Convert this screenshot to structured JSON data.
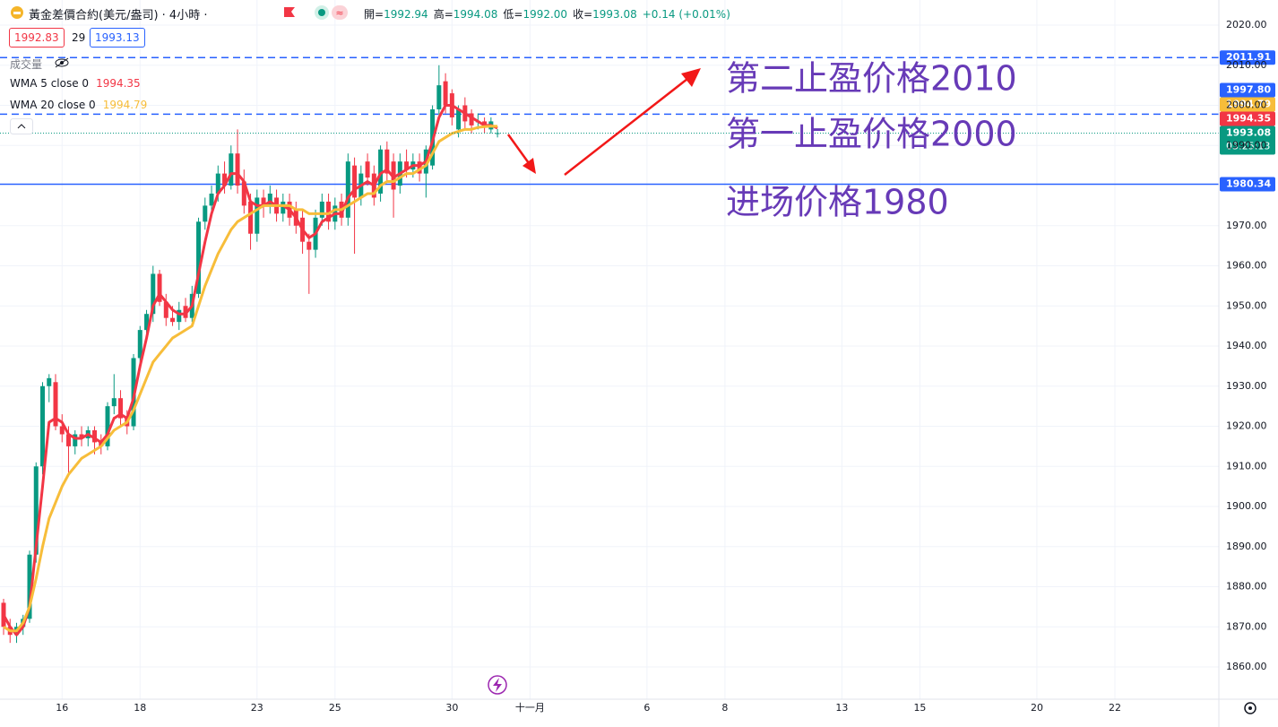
{
  "header": {
    "symbol": "黃金差價合約(美元/盎司) · 4小時 ·",
    "ohlc": [
      {
        "label": "開=",
        "value": "1992.94"
      },
      {
        "label": "高=",
        "value": "1994.08"
      },
      {
        "label": "低=",
        "value": "1992.00"
      },
      {
        "label": "收=",
        "value": "1993.08"
      }
    ],
    "change": "+0.14 (+0.01%)",
    "bid": "1992.83",
    "spread": "29",
    "ask": "1993.13",
    "volume_label": "成交量"
  },
  "chart_data": {
    "type": "candlestick",
    "up_color": "#089981",
    "down_color": "#f23645",
    "xlim": [
      0,
      187
    ],
    "ylim": [
      1851.96,
      2026.26
    ],
    "xticks": [
      {
        "value": 9,
        "label": "16"
      },
      {
        "value": 21,
        "label": "18"
      },
      {
        "value": 39,
        "label": "23"
      },
      {
        "value": 51,
        "label": "25"
      },
      {
        "value": 69,
        "label": "30"
      },
      {
        "value": 81,
        "label": "十一月"
      },
      {
        "value": 99,
        "label": "6"
      },
      {
        "value": 111,
        "label": "8"
      },
      {
        "value": 129,
        "label": "13"
      },
      {
        "value": 141,
        "label": "15"
      },
      {
        "value": 159,
        "label": "20"
      },
      {
        "value": 171,
        "label": "22"
      }
    ],
    "yticks": [
      {
        "value": 2020,
        "label": "2020.00"
      },
      {
        "value": 2010,
        "label": "2010.00"
      },
      {
        "value": 2000,
        "label": "2000.00"
      },
      {
        "value": 1990,
        "label": "1990.00"
      },
      {
        "value": 1970,
        "label": "1970.00"
      },
      {
        "value": 1960,
        "label": "1960.00"
      },
      {
        "value": 1950,
        "label": "1950.00"
      },
      {
        "value": 1940,
        "label": "1940.00"
      },
      {
        "value": 1930,
        "label": "1930.00"
      },
      {
        "value": 1920,
        "label": "1920.00"
      },
      {
        "value": 1910,
        "label": "1910.00"
      },
      {
        "value": 1900,
        "label": "1900.00"
      },
      {
        "value": 1890,
        "label": "1890.00"
      },
      {
        "value": 1880,
        "label": "1880.00"
      },
      {
        "value": 1870,
        "label": "1870.00"
      },
      {
        "value": 1860,
        "label": "1860.00"
      }
    ],
    "grid": true,
    "ohlc": [
      [
        1876,
        1877,
        1868,
        1870
      ],
      [
        1870,
        1872,
        1866,
        1868
      ],
      [
        1868,
        1871,
        1866,
        1870
      ],
      [
        1870,
        1873,
        1868,
        1872
      ],
      [
        1872,
        1889,
        1871,
        1888
      ],
      [
        1888,
        1911,
        1886,
        1910
      ],
      [
        1910,
        1931,
        1908,
        1930
      ],
      [
        1930,
        1933,
        1926,
        1932
      ],
      [
        1931,
        1933,
        1919,
        1920
      ],
      [
        1920,
        1923,
        1916,
        1918
      ],
      [
        1918,
        1920,
        1908,
        1915
      ],
      [
        1915,
        1919,
        1913,
        1918
      ],
      [
        1918,
        1920,
        1915,
        1917
      ],
      [
        1917,
        1920,
        1915,
        1919
      ],
      [
        1919,
        1920,
        1913,
        1916
      ],
      [
        1916,
        1918,
        1913,
        1915
      ],
      [
        1915,
        1926,
        1914,
        1925
      ],
      [
        1925,
        1933,
        1923,
        1927
      ],
      [
        1927,
        1929,
        1920,
        1922
      ],
      [
        1922,
        1924,
        1918,
        1920
      ],
      [
        1920,
        1938,
        1919,
        1937
      ],
      [
        1937,
        1945,
        1935,
        1944
      ],
      [
        1944,
        1949,
        1941,
        1948
      ],
      [
        1948,
        1960,
        1946,
        1958
      ],
      [
        1958,
        1959,
        1950,
        1951
      ],
      [
        1951,
        1953,
        1945,
        1947
      ],
      [
        1947,
        1950,
        1945,
        1946
      ],
      [
        1946,
        1951,
        1944,
        1949
      ],
      [
        1950,
        1952,
        1946,
        1947
      ],
      [
        1947,
        1955,
        1946,
        1953
      ],
      [
        1953,
        1972,
        1952,
        1971
      ],
      [
        1971,
        1977,
        1969,
        1975
      ],
      [
        1975,
        1980,
        1972,
        1978
      ],
      [
        1978,
        1985,
        1976,
        1983
      ],
      [
        1983,
        1986,
        1978,
        1980
      ],
      [
        1980,
        1990,
        1979,
        1988
      ],
      [
        1988,
        1994,
        1978,
        1980
      ],
      [
        1981,
        1984,
        1973,
        1975
      ],
      [
        1976,
        1978,
        1964,
        1968
      ],
      [
        1968,
        1979,
        1966,
        1977
      ],
      [
        1977,
        1979,
        1972,
        1975
      ],
      [
        1975,
        1980,
        1973,
        1978
      ],
      [
        1977,
        1979,
        1971,
        1973
      ],
      [
        1973,
        1978,
        1971,
        1976
      ],
      [
        1976,
        1978,
        1970,
        1972
      ],
      [
        1974,
        1976,
        1968,
        1970
      ],
      [
        1972,
        1974,
        1963,
        1966
      ],
      [
        1966,
        1968,
        1953,
        1964
      ],
      [
        1964,
        1974,
        1962,
        1972
      ],
      [
        1972,
        1978,
        1970,
        1976
      ],
      [
        1976,
        1978,
        1969,
        1971
      ],
      [
        1971,
        1977,
        1969,
        1975
      ],
      [
        1976,
        1978,
        1970,
        1972
      ],
      [
        1972,
        1988,
        1970,
        1986
      ],
      [
        1985,
        1987,
        1963,
        1977
      ],
      [
        1977,
        1985,
        1975,
        1983
      ],
      [
        1986,
        1988,
        1980,
        1982
      ],
      [
        1983,
        1985,
        1975,
        1977
      ],
      [
        1978,
        1990,
        1976,
        1989
      ],
      [
        1989,
        1991,
        1981,
        1983
      ],
      [
        1986,
        1988,
        1972,
        1979
      ],
      [
        1980,
        1988,
        1978,
        1986
      ],
      [
        1986,
        1989,
        1982,
        1984
      ],
      [
        1984,
        1988,
        1982,
        1986
      ],
      [
        1986,
        1988,
        1981,
        1983
      ],
      [
        1983,
        1990,
        1977,
        1989
      ],
      [
        1985,
        2000,
        1984,
        1999
      ],
      [
        1999,
        2010,
        1997,
        2005
      ],
      [
        2006,
        2008,
        1998,
        2000
      ],
      [
        2003,
        2004,
        1995,
        1997
      ],
      [
        1994,
        2000,
        1992,
        1999
      ],
      [
        2000,
        2002,
        1994,
        1996
      ],
      [
        1998,
        1999,
        1993,
        1995
      ],
      [
        1996,
        1998,
        1994,
        1996
      ],
      [
        1996,
        1997,
        1993,
        1995
      ],
      [
        1994,
        1997,
        1993,
        1996
      ],
      [
        1992.94,
        1994.08,
        1992,
        1993.08
      ]
    ],
    "series": [
      {
        "name": "WMA 5 close 0",
        "color": "#f23645",
        "values": [
          1873,
          1870,
          1868,
          1870,
          1875,
          1890,
          1905,
          1921,
          1922,
          1921,
          1918,
          1917,
          1917,
          1918,
          1917,
          1916,
          1918,
          1922,
          1923,
          1922,
          1927,
          1935,
          1942,
          1950,
          1953,
          1951,
          1949,
          1948,
          1948,
          1950,
          1958,
          1966,
          1973,
          1978,
          1980,
          1983,
          1983,
          1981,
          1976,
          1975,
          1975,
          1976,
          1975,
          1975,
          1974,
          1972,
          1969,
          1967,
          1968,
          1971,
          1972,
          1973,
          1973,
          1977,
          1979,
          1980,
          1981,
          1980,
          1983,
          1984,
          1982,
          1983,
          1984,
          1985,
          1985,
          1986,
          1991,
          1997,
          2000,
          2000,
          1999,
          1998,
          1997,
          1996,
          1995,
          1995,
          1994.35
        ]
      },
      {
        "name": "WMA 20 close 0",
        "color": "#f7bd3a",
        "values": [
          1870,
          1869,
          1869,
          1871,
          1875,
          1882,
          1890,
          1897,
          1901,
          1905,
          1908,
          1910,
          1912,
          1913,
          1914,
          1915,
          1917,
          1919,
          1920,
          1921,
          1924,
          1928,
          1932,
          1936,
          1938,
          1940,
          1942,
          1943,
          1944,
          1945,
          1950,
          1955,
          1959,
          1963,
          1966,
          1969,
          1971,
          1972,
          1973,
          1974,
          1975,
          1975,
          1975,
          1975,
          1975,
          1974,
          1974,
          1973,
          1973,
          1973,
          1973,
          1974,
          1974,
          1975,
          1976,
          1977,
          1978,
          1978,
          1980,
          1981,
          1981,
          1982,
          1983,
          1983,
          1984,
          1985,
          1988,
          1991,
          1992,
          1993,
          1993.5,
          1994,
          1994,
          1994.5,
          1994.7,
          1994.8,
          1994.79
        ]
      }
    ],
    "hlines": [
      {
        "value": 2011.91,
        "color": "#2962ff",
        "style": "dashed"
      },
      {
        "value": 1997.8,
        "label": "1997.80",
        "color": "#2962ff",
        "style": "dashed"
      },
      {
        "value": 1980.34,
        "color": "#2962ff",
        "style": "solid"
      }
    ],
    "countdown": "03:25:13",
    "annotations": [
      {
        "text": "第二止盈价格2010",
        "color": "#673ab7"
      },
      {
        "text": "第一止盈价格2000",
        "color": "#673ab7"
      },
      {
        "text": "进场价格1980",
        "color": "#673ab7"
      }
    ]
  }
}
